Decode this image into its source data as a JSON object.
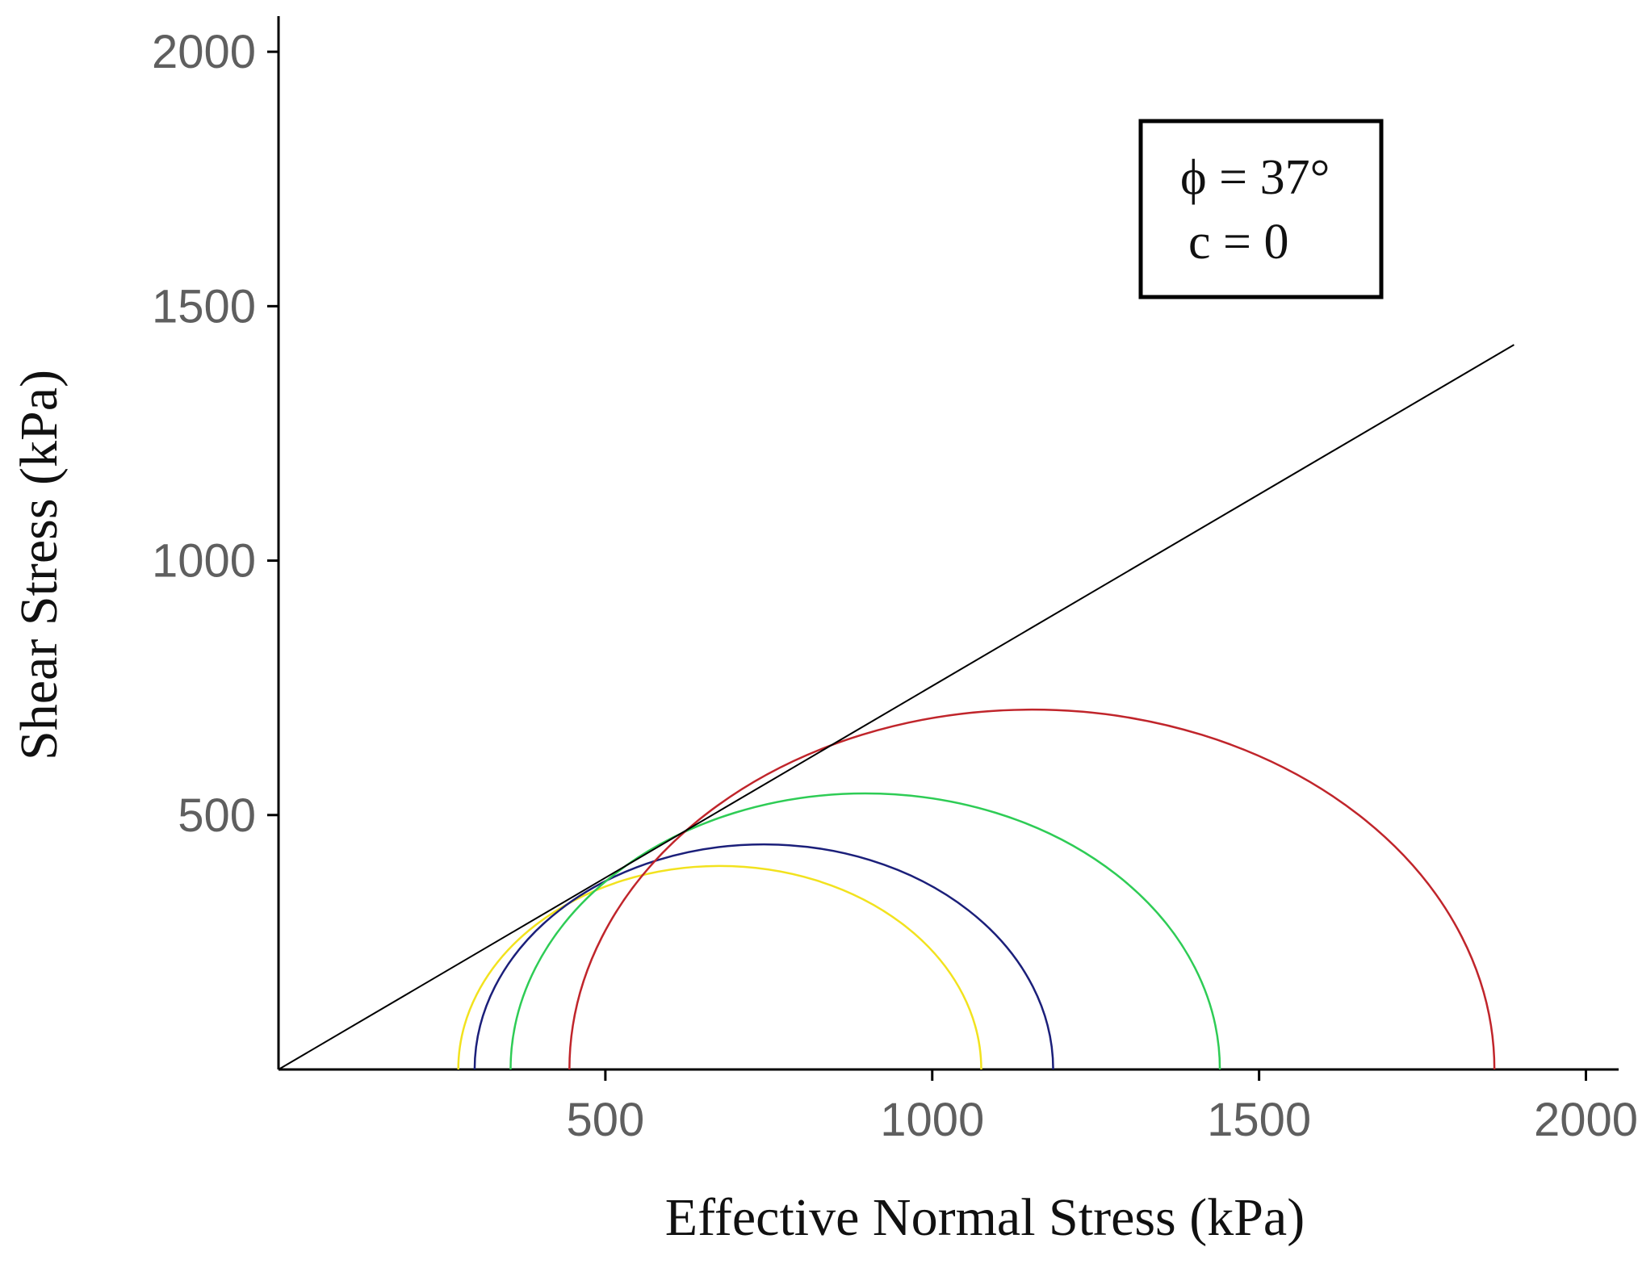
{
  "chart_data": {
    "type": "scatter",
    "title": "",
    "xlabel": "Effective Normal Stress (kPa)",
    "ylabel": "Shear Stress (kPa)",
    "xlim": [
      0,
      2050
    ],
    "ylim": [
      0,
      2070
    ],
    "xticks": [
      500,
      1000,
      1500,
      2000
    ],
    "yticks": [
      500,
      1000,
      1500,
      2000
    ],
    "xtick_labels": [
      "500",
      "1000",
      "1500",
      "2000"
    ],
    "ytick_labels": [
      "500",
      "1000",
      "1500",
      "2000"
    ],
    "grid": false,
    "failure_envelope": {
      "phi_deg": 37,
      "cohesion": 0,
      "x_start": 0,
      "x_end": 1890,
      "color": "#000000"
    },
    "series": [
      {
        "name": "yellow circle",
        "color": "#f2e21e",
        "sigma3": 275,
        "sigma1": 1075
      },
      {
        "name": "navy circle",
        "color": "#1b1f7a",
        "sigma3": 300,
        "sigma1": 1185
      },
      {
        "name": "green circle",
        "color": "#2ecc55",
        "sigma3": 355,
        "sigma1": 1440
      },
      {
        "name": "red circle",
        "color": "#c0252b",
        "sigma3": 445,
        "sigma1": 1860
      }
    ],
    "annotation": {
      "line1": "ϕ = 37°",
      "line2": "c = 0",
      "position": "top-right"
    }
  }
}
